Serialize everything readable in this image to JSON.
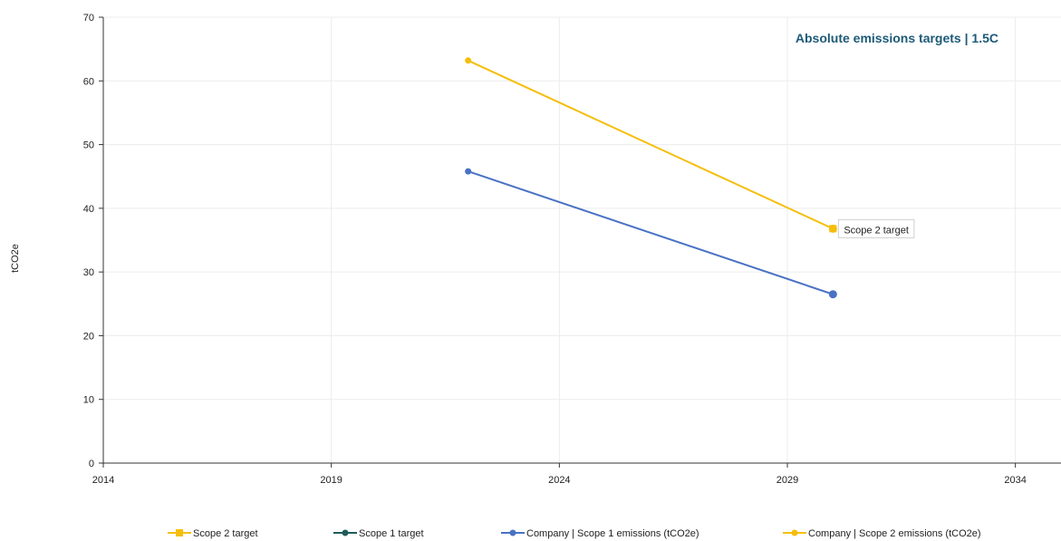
{
  "chart_data": {
    "type": "line",
    "title": "Absolute emissions targets | 1.5C",
    "ylabel": "tCO2e",
    "xlabel": "",
    "xlim": [
      2014,
      2035
    ],
    "ylim": [
      0,
      70
    ],
    "x_ticks": [
      2014,
      2019,
      2024,
      2029,
      2034
    ],
    "y_ticks": [
      0,
      10,
      20,
      30,
      40,
      50,
      60,
      70
    ],
    "grid": true,
    "legend_position": "bottom",
    "series": [
      {
        "name": "Scope 2 target",
        "color": "#f5be0b",
        "marker": "square",
        "points": [
          {
            "x": 2030,
            "y": 36.8
          }
        ]
      },
      {
        "name": "Scope 1 target",
        "color": "#1f5c5a",
        "marker": "circle",
        "points": []
      },
      {
        "name": "Company | Scope 1 emissions (tCO2e)",
        "color": "#4a72c4",
        "marker": "circle",
        "points": [
          {
            "x": 2022,
            "y": 45.8
          },
          {
            "x": 2030,
            "y": 26.5
          }
        ]
      },
      {
        "name": "Company | Scope 2 emissions (tCO2e)",
        "color": "#f5be0b",
        "marker": "circle",
        "points": [
          {
            "x": 2022,
            "y": 63.2
          },
          {
            "x": 2030,
            "y": 36.8
          }
        ]
      }
    ],
    "annotations": [
      {
        "text": "Scope 2 target",
        "x": 2030,
        "y": 36.8
      }
    ]
  }
}
